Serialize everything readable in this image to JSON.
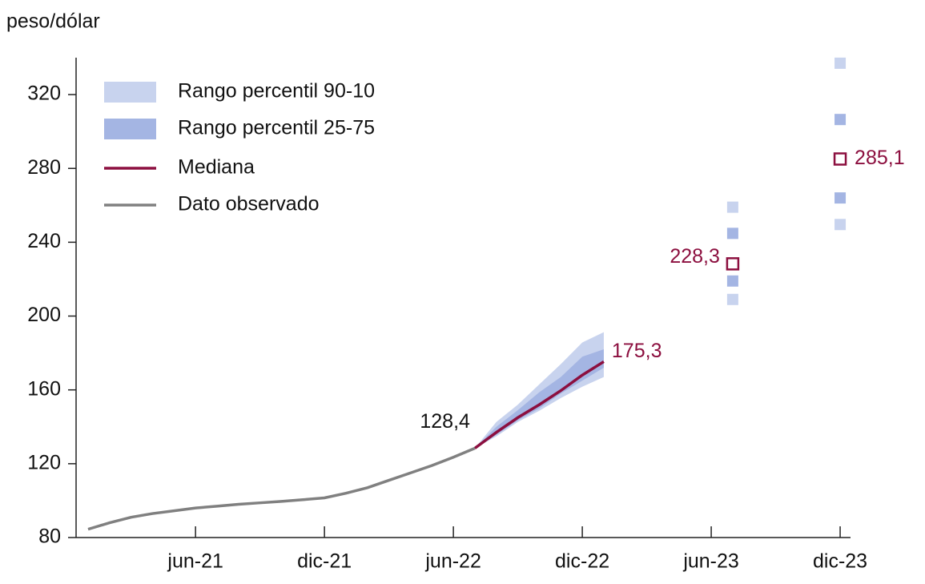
{
  "chart_data": {
    "type": "line",
    "y_label": "peso/dólar",
    "categories": [
      null,
      null,
      null,
      null,
      null,
      "jun-21",
      null,
      null,
      null,
      null,
      null,
      "dic-21",
      null,
      null,
      null,
      null,
      null,
      "jun-22",
      null,
      null,
      null,
      null,
      null,
      "dic-22",
      null,
      null,
      null,
      null,
      null,
      "jun-23",
      null,
      null,
      null,
      null,
      null,
      "dic-23"
    ],
    "ylim": [
      80,
      340
    ],
    "yticks": [
      80,
      120,
      160,
      200,
      240,
      280,
      320
    ],
    "grid": false,
    "legend": "upper left",
    "series": [
      {
        "name": "Rango percentil 90-10",
        "color": "#c8d3ee",
        "high": [
          null,
          null,
          null,
          null,
          null,
          null,
          null,
          null,
          null,
          null,
          null,
          null,
          null,
          null,
          null,
          null,
          null,
          null,
          128.4,
          142.6,
          152,
          163,
          174,
          185.7,
          191.3,
          null,
          null,
          null,
          null,
          null,
          259,
          null,
          null,
          null,
          null,
          337
        ],
        "low": [
          null,
          null,
          null,
          null,
          null,
          null,
          null,
          null,
          null,
          null,
          null,
          null,
          null,
          null,
          null,
          null,
          null,
          null,
          128.4,
          134.8,
          142.6,
          148.7,
          155.6,
          161.7,
          167,
          null,
          null,
          null,
          null,
          null,
          209,
          null,
          null,
          null,
          null,
          249.6
        ]
      },
      {
        "name": "Rango percentil 25-75",
        "color": "#a4b5e3",
        "high": [
          null,
          null,
          null,
          null,
          null,
          null,
          null,
          null,
          null,
          null,
          null,
          null,
          null,
          null,
          null,
          null,
          null,
          null,
          128.4,
          140,
          149,
          158.7,
          167,
          178,
          182,
          null,
          null,
          null,
          null,
          null,
          244.8,
          null,
          null,
          null,
          null,
          306.5
        ],
        "low": [
          null,
          null,
          null,
          null,
          null,
          null,
          null,
          null,
          null,
          null,
          null,
          null,
          null,
          null,
          null,
          null,
          null,
          null,
          128.4,
          135.6,
          143.5,
          150,
          158,
          165,
          172,
          null,
          null,
          null,
          null,
          null,
          219,
          null,
          null,
          null,
          null,
          264
        ]
      },
      {
        "name": "Mediana",
        "color": "#8c0f3f",
        "values": [
          null,
          null,
          null,
          null,
          null,
          null,
          null,
          null,
          null,
          null,
          null,
          null,
          null,
          null,
          null,
          null,
          null,
          null,
          128.4,
          137,
          145,
          152,
          159.6,
          168,
          175.3,
          null,
          null,
          null,
          null,
          null,
          228.3,
          null,
          null,
          null,
          null,
          285.1
        ],
        "value_labels": [
          null,
          null,
          null,
          null,
          null,
          null,
          null,
          null,
          null,
          null,
          null,
          null,
          null,
          null,
          null,
          null,
          null,
          null,
          null,
          null,
          null,
          null,
          null,
          null,
          "175,3",
          null,
          null,
          null,
          null,
          null,
          "228,3",
          null,
          null,
          null,
          null,
          "285,1"
        ]
      },
      {
        "name": "Dato observado",
        "color": "#808080",
        "values": [
          84.5,
          88,
          91,
          93,
          94.5,
          96,
          97,
          98,
          98.8,
          99.6,
          100.5,
          101.5,
          104,
          107,
          111,
          115,
          119,
          123.5,
          128.4,
          null,
          null,
          null,
          null,
          null,
          null,
          null,
          null,
          null,
          null,
          null,
          null,
          null,
          null,
          null,
          null,
          null
        ],
        "value_labels": [
          null,
          null,
          null,
          null,
          null,
          null,
          null,
          null,
          null,
          null,
          null,
          null,
          null,
          null,
          null,
          null,
          null,
          null,
          "128,4",
          null,
          null,
          null,
          null,
          null,
          null,
          null,
          null,
          null,
          null,
          null,
          null,
          null,
          null,
          null,
          null,
          null
        ]
      }
    ]
  }
}
